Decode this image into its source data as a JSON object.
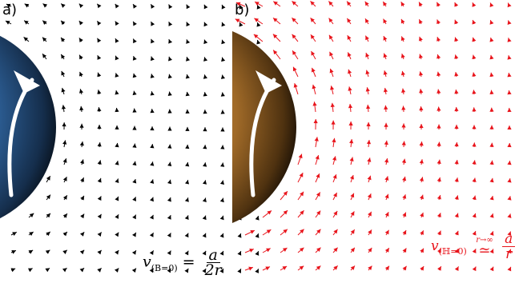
{
  "panel_a": {
    "label": "a)",
    "arrow_color": "#000000",
    "sphere_color": "#2e5d8e",
    "formula": {
      "lhs": "v",
      "sub": "(B=0)",
      "rel": "=",
      "num": "a",
      "den": "2r"
    }
  },
  "panel_b": {
    "label": "b)",
    "arrow_color": "#e8141b",
    "sphere_color": "#a8732e",
    "formula": {
      "lhs": "v",
      "sub": "(ℍ=0)",
      "rel": "≃",
      "rel_over": "r→∞",
      "num": "a",
      "den": "r"
    }
  }
}
